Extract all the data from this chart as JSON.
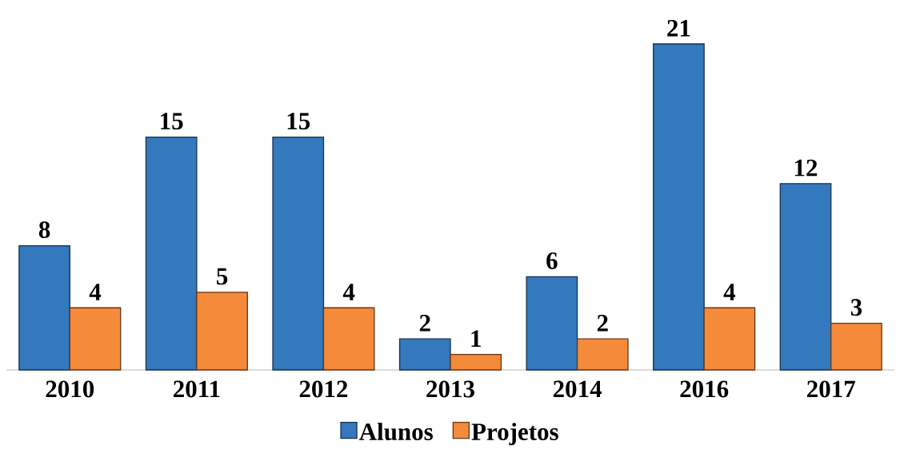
{
  "chart_data": {
    "type": "bar",
    "categories": [
      "2010",
      "2011",
      "2012",
      "2013",
      "2014",
      "2016",
      "2017"
    ],
    "series": [
      {
        "name": "Alunos",
        "color": "#3478be",
        "values": [
          8,
          15,
          15,
          2,
          6,
          21,
          12
        ]
      },
      {
        "name": "Projetos",
        "color": "#f58a3b",
        "values": [
          4,
          5,
          4,
          1,
          2,
          4,
          3
        ]
      }
    ],
    "data_labels": true,
    "legend": "bottom"
  }
}
